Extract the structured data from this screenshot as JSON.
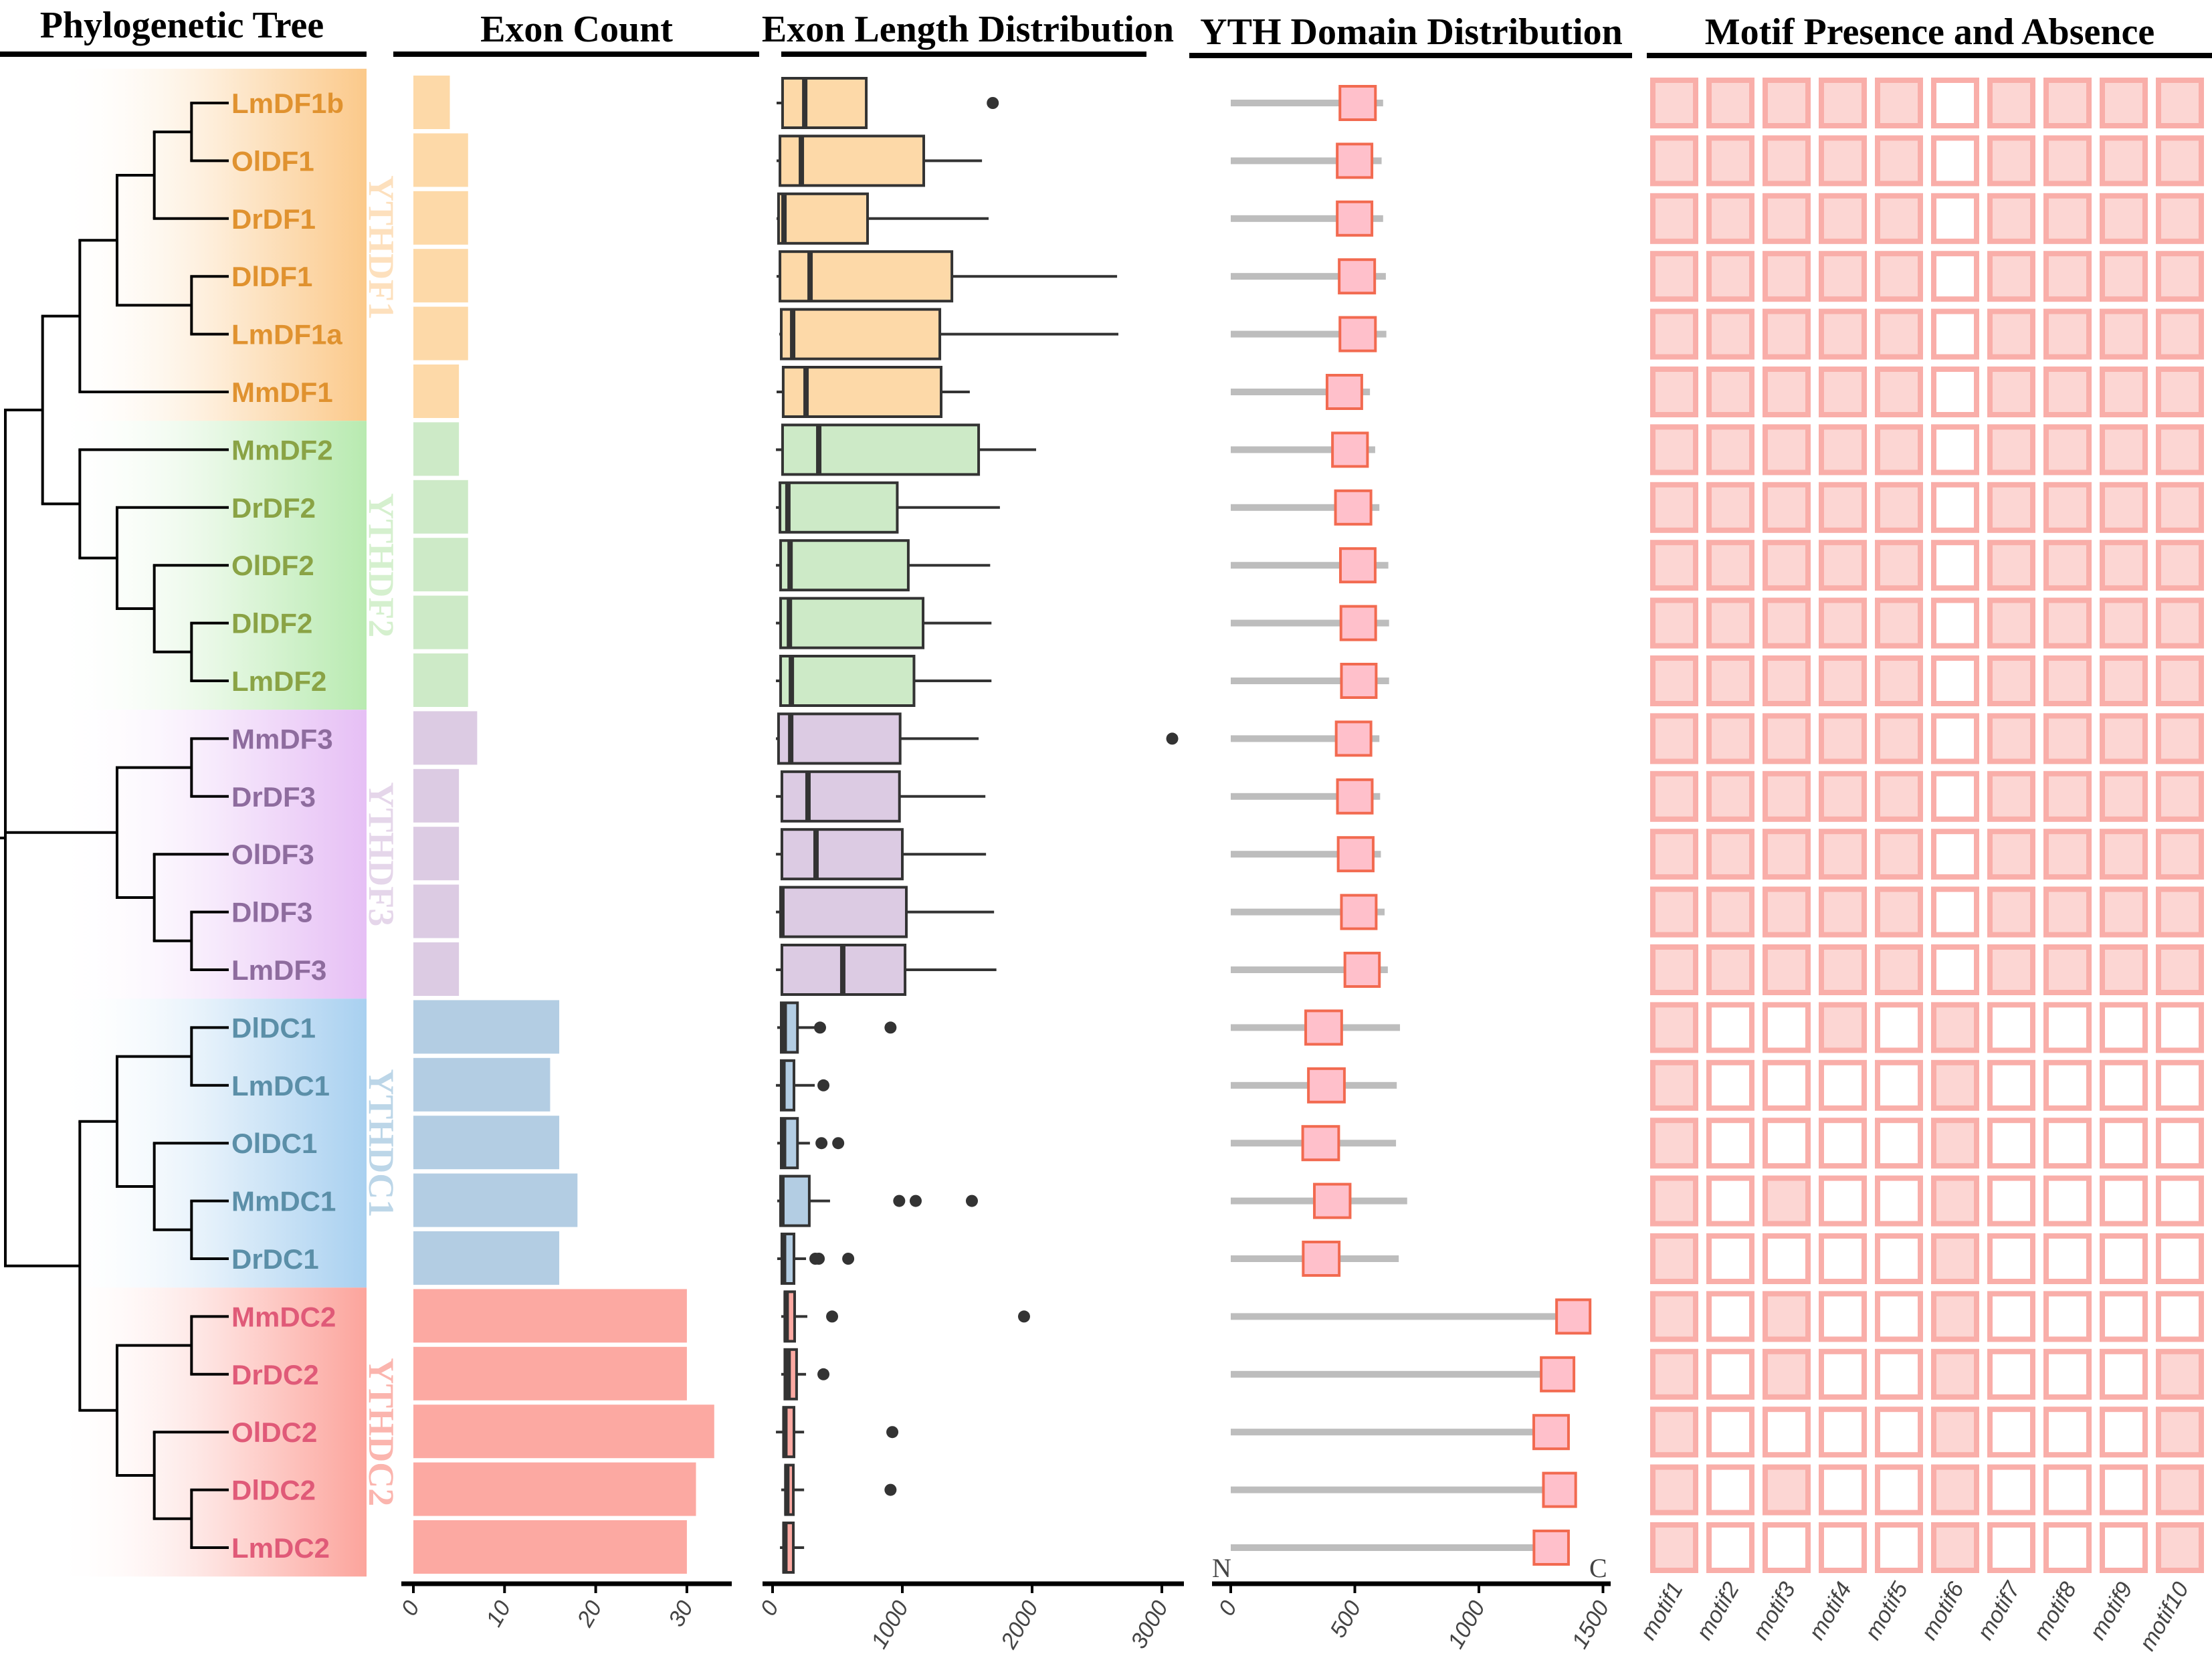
{
  "panels": {
    "tree_title": "Phylogenetic Tree",
    "exon_count_title": "Exon Count",
    "exon_length_title": "Exon Length Distribution",
    "yth_title": "YTH Domain Distribution",
    "motif_title": "Motif Presence and Absence",
    "n_label": "N",
    "c_label": "C"
  },
  "colors": {
    "YTHDF1": {
      "label": "#e0922f",
      "bar": "#fdd9a8",
      "bg": "#fbc98a",
      "group_text": "#fde0bd"
    },
    "YTHDF2": {
      "label": "#8aa345",
      "bar": "#cdeac7",
      "bg": "#b8eab0",
      "group_text": "#d5f0ce"
    },
    "YTHDF3": {
      "label": "#8e6c9e",
      "bar": "#dccbe3",
      "bg": "#e6bff5",
      "group_text": "#e5d6ea"
    },
    "YTHDC1": {
      "label": "#5b8fa8",
      "bar": "#b3cde3",
      "bg": "#a8d0f0",
      "group_text": "#bcd6e8"
    },
    "YTHDC2": {
      "label": "#e05a78",
      "bar": "#fca9a2",
      "bg": "#fca49c",
      "group_text": "#fbb5ae"
    },
    "domain_fill": "#ffc0cb",
    "domain_stroke": "#f26a50",
    "protein_line": "#bdbdbd",
    "motif_stroke": "#f9aea9",
    "motif_fill": "#fcd6d3"
  },
  "groups": [
    {
      "name": "YTHDF1",
      "members": [
        "LmDF1b",
        "OlDF1",
        "DrDF1",
        "DlDF1",
        "LmDF1a",
        "MmDF1"
      ]
    },
    {
      "name": "YTHDF2",
      "members": [
        "MmDF2",
        "DrDF2",
        "OlDF2",
        "DlDF2",
        "LmDF2"
      ]
    },
    {
      "name": "YTHDF3",
      "members": [
        "MmDF3",
        "DrDF3",
        "OlDF3",
        "DlDF3",
        "LmDF3"
      ]
    },
    {
      "name": "YTHDC1",
      "members": [
        "DlDC1",
        "LmDC1",
        "OlDC1",
        "MmDC1",
        "DrDC1"
      ]
    },
    {
      "name": "YTHDC2",
      "members": [
        "MmDC2",
        "DrDC2",
        "OlDC2",
        "DlDC2",
        "LmDC2"
      ]
    }
  ],
  "tree_newick": "((((((LmDF1b,OlDF1),DrDF1),(DlDF1,LmDF1a)),MmDF1),(MmDF2,(DrDF2,(OlDF2,(DlDF2,LmDF2))))),((MmDF3,DrDF3),(OlDF3,(DlDF3,LmDF3))),(((DlDC1,LmDC1),(OlDC1,(MmDC1,DrDC1))),((MmDC2,DrDC2),(OlDC2,(DlDC2,LmDC2)))));",
  "chart_data": [
    {
      "type": "bar",
      "title": "Exon Count",
      "orientation": "horizontal",
      "categories": [
        "LmDF1b",
        "OlDF1",
        "DrDF1",
        "DlDF1",
        "LmDF1a",
        "MmDF1",
        "MmDF2",
        "DrDF2",
        "OlDF2",
        "DlDF2",
        "LmDF2",
        "MmDF3",
        "DrDF3",
        "OlDF3",
        "DlDF3",
        "LmDF3",
        "DlDC1",
        "LmDC1",
        "OlDC1",
        "MmDC1",
        "DrDC1",
        "MmDC2",
        "DrDC2",
        "OlDC2",
        "DlDC2",
        "LmDC2"
      ],
      "values": [
        4,
        6,
        6,
        6,
        6,
        5,
        5,
        6,
        6,
        6,
        6,
        7,
        5,
        5,
        5,
        5,
        16,
        15,
        16,
        18,
        16,
        30,
        30,
        33,
        31,
        30
      ],
      "xlim": [
        0,
        34
      ],
      "xticks": [
        "0",
        "10",
        "20",
        "30"
      ],
      "grid": false
    },
    {
      "type": "boxplot",
      "title": "Exon Length Distribution",
      "orientation": "horizontal",
      "xlim": [
        0,
        3200
      ],
      "xticks": [
        "0",
        "1000",
        "2000",
        "3000"
      ],
      "boxes": [
        {
          "name": "LmDF1b",
          "min": 31,
          "q1": 77,
          "median": 248,
          "q3": 722,
          "max": 722,
          "outliers": [
            1697
          ]
        },
        {
          "name": "OlDF1",
          "min": 31,
          "q1": 57,
          "median": 222,
          "q3": 1165,
          "max": 1614,
          "outliers": []
        },
        {
          "name": "DrDF1",
          "min": 31,
          "q1": 46,
          "median": 88,
          "q3": 732,
          "max": 1665,
          "outliers": []
        },
        {
          "name": "DlDF1",
          "min": 31,
          "q1": 57,
          "median": 289,
          "q3": 1382,
          "max": 2655,
          "outliers": []
        },
        {
          "name": "LmDF1a",
          "min": 52,
          "q1": 67,
          "median": 155,
          "q3": 1289,
          "max": 2665,
          "outliers": []
        },
        {
          "name": "MmDF1",
          "min": 31,
          "q1": 82,
          "median": 258,
          "q3": 1299,
          "max": 1520,
          "outliers": []
        },
        {
          "name": "MmDF2",
          "min": 26,
          "q1": 77,
          "median": 356,
          "q3": 1588,
          "max": 2031,
          "outliers": []
        },
        {
          "name": "DrDF2",
          "min": 26,
          "q1": 57,
          "median": 118,
          "q3": 961,
          "max": 1752,
          "outliers": []
        },
        {
          "name": "OlDF2",
          "min": 26,
          "q1": 62,
          "median": 135,
          "q3": 1046,
          "max": 1677,
          "outliers": []
        },
        {
          "name": "DlDF2",
          "min": 26,
          "q1": 62,
          "median": 130,
          "q3": 1160,
          "max": 1687,
          "outliers": []
        },
        {
          "name": "LmDF2",
          "min": 26,
          "q1": 62,
          "median": 145,
          "q3": 1090,
          "max": 1687,
          "outliers": []
        },
        {
          "name": "MmDF3",
          "min": 26,
          "q1": 46,
          "median": 140,
          "q3": 983,
          "max": 1588,
          "outliers": [
            3080
          ]
        },
        {
          "name": "DrDF3",
          "min": 26,
          "q1": 72,
          "median": 273,
          "q3": 978,
          "max": 1640,
          "outliers": []
        },
        {
          "name": "OlDF3",
          "min": 26,
          "q1": 72,
          "median": 335,
          "q3": 1000,
          "max": 1645,
          "outliers": []
        },
        {
          "name": "DlDF3",
          "min": 26,
          "q1": 62,
          "median": 72,
          "q3": 1031,
          "max": 1707,
          "outliers": []
        },
        {
          "name": "LmDF3",
          "min": 26,
          "q1": 72,
          "median": 541,
          "q3": 1021,
          "max": 1725,
          "outliers": []
        },
        {
          "name": "DlDC1",
          "min": 36,
          "q1": 67,
          "median": 90,
          "q3": 192,
          "max": 325,
          "outliers": [
            366,
            909
          ]
        },
        {
          "name": "LmDC1",
          "min": 26,
          "q1": 67,
          "median": 80,
          "q3": 165,
          "max": 325,
          "outliers": [
            392
          ]
        },
        {
          "name": "OlDC1",
          "min": 36,
          "q1": 67,
          "median": 85,
          "q3": 192,
          "max": 288,
          "outliers": [
            377,
            506
          ]
        },
        {
          "name": "MmDC1",
          "min": 36,
          "q1": 62,
          "median": 72,
          "q3": 283,
          "max": 443,
          "outliers": [
            976,
            1103,
            1536
          ]
        },
        {
          "name": "DrDC1",
          "min": 36,
          "q1": 72,
          "median": 85,
          "q3": 165,
          "max": 258,
          "outliers": [
            330,
            356,
            583
          ]
        },
        {
          "name": "MmDC2",
          "min": 67,
          "q1": 95,
          "median": 105,
          "q3": 170,
          "max": 268,
          "outliers": [
            459,
            1938
          ]
        },
        {
          "name": "DrDC2",
          "min": 67,
          "q1": 95,
          "median": 120,
          "q3": 185,
          "max": 258,
          "outliers": [
            392
          ]
        },
        {
          "name": "OlDC2",
          "min": 26,
          "q1": 85,
          "median": 95,
          "q3": 165,
          "max": 243,
          "outliers": [
            923
          ]
        },
        {
          "name": "DlDC2",
          "min": 67,
          "q1": 100,
          "median": 110,
          "q3": 160,
          "max": 243,
          "outliers": [
            909
          ]
        },
        {
          "name": "LmDC2",
          "min": 57,
          "q1": 85,
          "median": 95,
          "q3": 160,
          "max": 243,
          "outliers": []
        }
      ]
    },
    {
      "type": "domain-track",
      "title": "YTH Domain Distribution",
      "xlim": [
        0,
        1500
      ],
      "xticks": [
        "0",
        "500",
        "1000",
        "1500"
      ],
      "proteins": [
        {
          "name": "LmDF1b",
          "length": 614,
          "domain": [
            440,
            583
          ]
        },
        {
          "name": "OlDF1",
          "length": 608,
          "domain": [
            429,
            569
          ]
        },
        {
          "name": "DrDF1",
          "length": 614,
          "domain": [
            429,
            569
          ]
        },
        {
          "name": "DlDF1",
          "length": 625,
          "domain": [
            437,
            580
          ]
        },
        {
          "name": "LmDF1a",
          "length": 627,
          "domain": [
            440,
            583
          ]
        },
        {
          "name": "MmDF1",
          "length": 561,
          "domain": [
            388,
            528
          ]
        },
        {
          "name": "MmDF2",
          "length": 582,
          "domain": [
            410,
            551
          ]
        },
        {
          "name": "DrDF2",
          "length": 599,
          "domain": [
            422,
            565
          ]
        },
        {
          "name": "OlDF2",
          "length": 635,
          "domain": [
            442,
            582
          ]
        },
        {
          "name": "DlDF2",
          "length": 638,
          "domain": [
            444,
            584
          ]
        },
        {
          "name": "LmDF2",
          "length": 638,
          "domain": [
            446,
            586
          ]
        },
        {
          "name": "MmDF3",
          "length": 599,
          "domain": [
            425,
            565
          ]
        },
        {
          "name": "DrDF3",
          "length": 602,
          "domain": [
            430,
            570
          ]
        },
        {
          "name": "OlDF3",
          "length": 605,
          "domain": [
            433,
            574
          ]
        },
        {
          "name": "DlDF3",
          "length": 620,
          "domain": [
            446,
            586
          ]
        },
        {
          "name": "LmDF3",
          "length": 633,
          "domain": [
            460,
            599
          ]
        },
        {
          "name": "DlDC1",
          "length": 682,
          "domain": [
            302,
            447
          ]
        },
        {
          "name": "LmDC1",
          "length": 669,
          "domain": [
            313,
            458
          ]
        },
        {
          "name": "OlDC1",
          "length": 666,
          "domain": [
            290,
            435
          ]
        },
        {
          "name": "MmDC1",
          "length": 711,
          "domain": [
            337,
            481
          ]
        },
        {
          "name": "DrDC1",
          "length": 677,
          "domain": [
            292,
            437
          ]
        },
        {
          "name": "MmDC2",
          "length": 1443,
          "domain": [
            1313,
            1448
          ]
        },
        {
          "name": "DrDC2",
          "length": 1383,
          "domain": [
            1251,
            1383
          ]
        },
        {
          "name": "OlDC2",
          "length": 1363,
          "domain": [
            1221,
            1361
          ]
        },
        {
          "name": "DlDC2",
          "length": 1390,
          "domain": [
            1260,
            1390
          ]
        },
        {
          "name": "LmDC2",
          "length": 1361,
          "domain": [
            1222,
            1361
          ]
        }
      ]
    },
    {
      "type": "heatmap",
      "title": "Motif Presence and Absence",
      "columns": [
        "motif1",
        "motif2",
        "motif3",
        "motif4",
        "motif5",
        "motif6",
        "motif7",
        "motif8",
        "motif9",
        "motif10"
      ],
      "rows": [
        {
          "name": "LmDF1b",
          "present": [
            1,
            1,
            1,
            1,
            1,
            0,
            1,
            1,
            1,
            1
          ]
        },
        {
          "name": "OlDF1",
          "present": [
            1,
            1,
            1,
            1,
            1,
            0,
            1,
            1,
            1,
            1
          ]
        },
        {
          "name": "DrDF1",
          "present": [
            1,
            1,
            1,
            1,
            1,
            0,
            1,
            1,
            1,
            1
          ]
        },
        {
          "name": "DlDF1",
          "present": [
            1,
            1,
            1,
            1,
            1,
            0,
            1,
            1,
            1,
            1
          ]
        },
        {
          "name": "LmDF1a",
          "present": [
            1,
            1,
            1,
            1,
            1,
            0,
            1,
            1,
            1,
            1
          ]
        },
        {
          "name": "MmDF1",
          "present": [
            1,
            1,
            1,
            1,
            1,
            0,
            1,
            1,
            1,
            1
          ]
        },
        {
          "name": "MmDF2",
          "present": [
            1,
            1,
            1,
            1,
            1,
            0,
            1,
            1,
            1,
            1
          ]
        },
        {
          "name": "DrDF2",
          "present": [
            1,
            1,
            1,
            1,
            1,
            0,
            1,
            1,
            1,
            1
          ]
        },
        {
          "name": "OlDF2",
          "present": [
            1,
            1,
            1,
            1,
            1,
            0,
            1,
            1,
            1,
            1
          ]
        },
        {
          "name": "DlDF2",
          "present": [
            1,
            1,
            1,
            1,
            1,
            0,
            1,
            1,
            1,
            1
          ]
        },
        {
          "name": "LmDF2",
          "present": [
            1,
            1,
            1,
            1,
            1,
            0,
            1,
            1,
            1,
            1
          ]
        },
        {
          "name": "MmDF3",
          "present": [
            1,
            1,
            1,
            1,
            1,
            0,
            1,
            1,
            1,
            1
          ]
        },
        {
          "name": "DrDF3",
          "present": [
            1,
            1,
            1,
            1,
            1,
            0,
            1,
            1,
            1,
            1
          ]
        },
        {
          "name": "OlDF3",
          "present": [
            1,
            1,
            1,
            1,
            1,
            0,
            1,
            1,
            1,
            1
          ]
        },
        {
          "name": "DlDF3",
          "present": [
            1,
            1,
            1,
            1,
            1,
            0,
            1,
            1,
            1,
            1
          ]
        },
        {
          "name": "LmDF3",
          "present": [
            1,
            1,
            1,
            1,
            1,
            0,
            1,
            1,
            1,
            1
          ]
        },
        {
          "name": "DlDC1",
          "present": [
            1,
            0,
            0,
            1,
            0,
            1,
            0,
            0,
            0,
            0
          ]
        },
        {
          "name": "LmDC1",
          "present": [
            1,
            0,
            0,
            0,
            0,
            1,
            0,
            0,
            0,
            0
          ]
        },
        {
          "name": "OlDC1",
          "present": [
            1,
            0,
            0,
            0,
            0,
            1,
            0,
            0,
            0,
            0
          ]
        },
        {
          "name": "MmDC1",
          "present": [
            1,
            0,
            1,
            0,
            0,
            1,
            0,
            0,
            0,
            0
          ]
        },
        {
          "name": "DrDC1",
          "present": [
            1,
            0,
            0,
            0,
            0,
            1,
            0,
            0,
            0,
            0
          ]
        },
        {
          "name": "MmDC2",
          "present": [
            1,
            0,
            1,
            0,
            0,
            1,
            0,
            0,
            0,
            0
          ]
        },
        {
          "name": "DrDC2",
          "present": [
            1,
            0,
            1,
            0,
            0,
            1,
            0,
            0,
            0,
            1
          ]
        },
        {
          "name": "OlDC2",
          "present": [
            1,
            0,
            0,
            0,
            0,
            1,
            0,
            0,
            0,
            1
          ]
        },
        {
          "name": "DlDC2",
          "present": [
            1,
            0,
            1,
            0,
            0,
            1,
            0,
            0,
            0,
            1
          ]
        },
        {
          "name": "LmDC2",
          "present": [
            1,
            0,
            0,
            0,
            0,
            1,
            0,
            0,
            0,
            1
          ]
        }
      ]
    }
  ]
}
